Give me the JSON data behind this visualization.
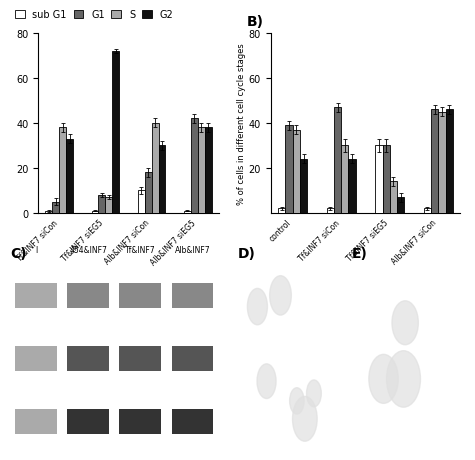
{
  "colors": {
    "sub_G1": "#ffffff",
    "G1": "#666666",
    "S": "#aaaaaa",
    "G2": "#111111"
  },
  "edgecolor": "#000000",
  "groups_A": [
    "Tf&INF7 siCon",
    "Tf&INF7 siEG5",
    "Alb&INF7 siCon",
    "Alb&INF7 siEG5"
  ],
  "groups_B": [
    "control",
    "Tf&INF7 siCon",
    "Tf&INF7 siEG5",
    "Alb&INF7 siCon"
  ],
  "data_A": {
    "sub_G1": [
      1,
      1,
      10,
      1
    ],
    "G1": [
      5,
      8,
      18,
      42
    ],
    "S": [
      38,
      7,
      40,
      38
    ],
    "G2": [
      33,
      72,
      30,
      38
    ]
  },
  "err_A": {
    "sub_G1": [
      0.5,
      0.3,
      1.5,
      0.3
    ],
    "G1": [
      1.5,
      1,
      2,
      2
    ],
    "S": [
      2,
      1,
      2,
      2
    ],
    "G2": [
      2,
      1,
      2,
      2
    ]
  },
  "data_B": {
    "sub_G1": [
      2,
      2,
      30,
      2
    ],
    "G1": [
      39,
      47,
      30,
      46
    ],
    "S": [
      37,
      30,
      14,
      45
    ],
    "G2": [
      24,
      24,
      7,
      46
    ]
  },
  "err_B": {
    "sub_G1": [
      0.5,
      0.5,
      3,
      0.5
    ],
    "G1": [
      2,
      2,
      3,
      2
    ],
    "S": [
      2,
      3,
      2,
      2
    ],
    "G2": [
      2,
      2,
      2,
      2
    ]
  },
  "ylabel_B": "% of cells in different cell cycle stages",
  "ylim": [
    0,
    80
  ],
  "yticks_A": [
    0,
    20,
    40,
    60,
    80
  ],
  "yticks_B": [
    20,
    40,
    60,
    80
  ],
  "background_color": "#ffffff"
}
